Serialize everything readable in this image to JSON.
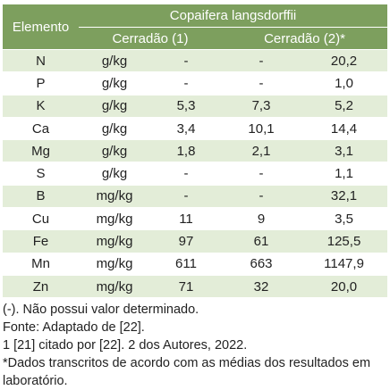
{
  "table": {
    "header": {
      "element": "Elemento",
      "species": "Copaifera langsdorffii",
      "group1": "Cerradão (1)",
      "group2": "Cerradão (2)*"
    },
    "rows": [
      [
        "N",
        "g/kg",
        "-",
        "-",
        "20,2"
      ],
      [
        "P",
        "g/kg",
        "-",
        "-",
        "1,0"
      ],
      [
        "K",
        "g/kg",
        "5,3",
        "7,3",
        "5,2"
      ],
      [
        "Ca",
        "g/kg",
        "3,4",
        "10,1",
        "14,4"
      ],
      [
        "Mg",
        "g/kg",
        "1,8",
        "2,1",
        "3,1"
      ],
      [
        "S",
        "g/kg",
        "-",
        "-",
        "1,1"
      ],
      [
        "B",
        "mg/kg",
        "-",
        "-",
        "32,1"
      ],
      [
        "Cu",
        "mg/kg",
        "11",
        "9",
        "3,5"
      ],
      [
        "Fe",
        "mg/kg",
        "97",
        "61",
        "125,5"
      ],
      [
        "Mn",
        "mg/kg",
        "611",
        "663",
        "1147,9"
      ],
      [
        "Zn",
        "mg/kg",
        "71",
        "32",
        "20,0"
      ]
    ]
  },
  "notes": [
    "(-). Não possui valor determinado.",
    "Fonte: Adaptado de [22].",
    "1 [21] citado por [22]. 2 dos Autores, 2022.",
    "*Dados transcritos de acordo com as médias dos resultados em laboratório."
  ]
}
